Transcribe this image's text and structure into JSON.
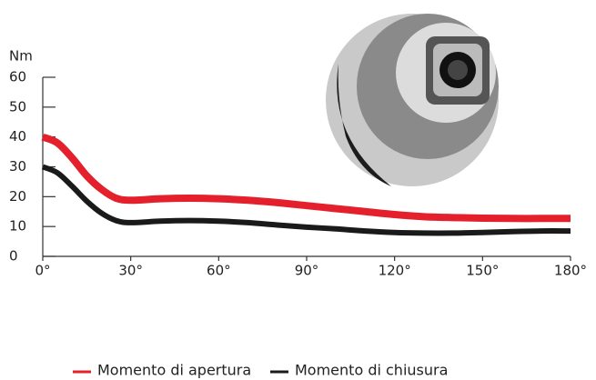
{
  "chart_data": {
    "type": "line",
    "y_label": "Nm",
    "x": [
      0,
      5,
      10,
      15,
      20,
      25,
      30,
      40,
      50,
      60,
      70,
      80,
      90,
      100,
      110,
      120,
      130,
      140,
      150,
      160,
      170,
      180
    ],
    "series": [
      {
        "name": "Momento di apertura",
        "color": "#e3202b",
        "values": [
          40,
          38,
          33,
          27,
          22.5,
          19.5,
          18.8,
          19.3,
          19.5,
          19.3,
          18.8,
          18,
          17,
          16,
          15,
          14,
          13.3,
          13,
          12.8,
          12.7,
          12.7,
          12.7
        ]
      },
      {
        "name": "Momento di chiusura",
        "color": "#1a1a1a",
        "values": [
          30,
          28,
          23.5,
          18.5,
          14.5,
          12,
          11.3,
          11.8,
          12,
          11.8,
          11.3,
          10.5,
          9.8,
          9.2,
          8.5,
          8,
          7.8,
          7.8,
          8,
          8.3,
          8.5,
          8.5
        ]
      }
    ],
    "xlim": [
      0,
      180
    ],
    "xticks": [
      {
        "value": 0,
        "label": "0°"
      },
      {
        "value": 30,
        "label": "30°"
      },
      {
        "value": 60,
        "label": "60°"
      },
      {
        "value": 90,
        "label": "90°"
      },
      {
        "value": 120,
        "label": "120°"
      },
      {
        "value": 150,
        "label": "150°"
      },
      {
        "value": 180,
        "label": "180°"
      }
    ],
    "ylim": [
      0,
      60
    ],
    "yticks": [
      0,
      10,
      20,
      30,
      40,
      50,
      60
    ]
  }
}
